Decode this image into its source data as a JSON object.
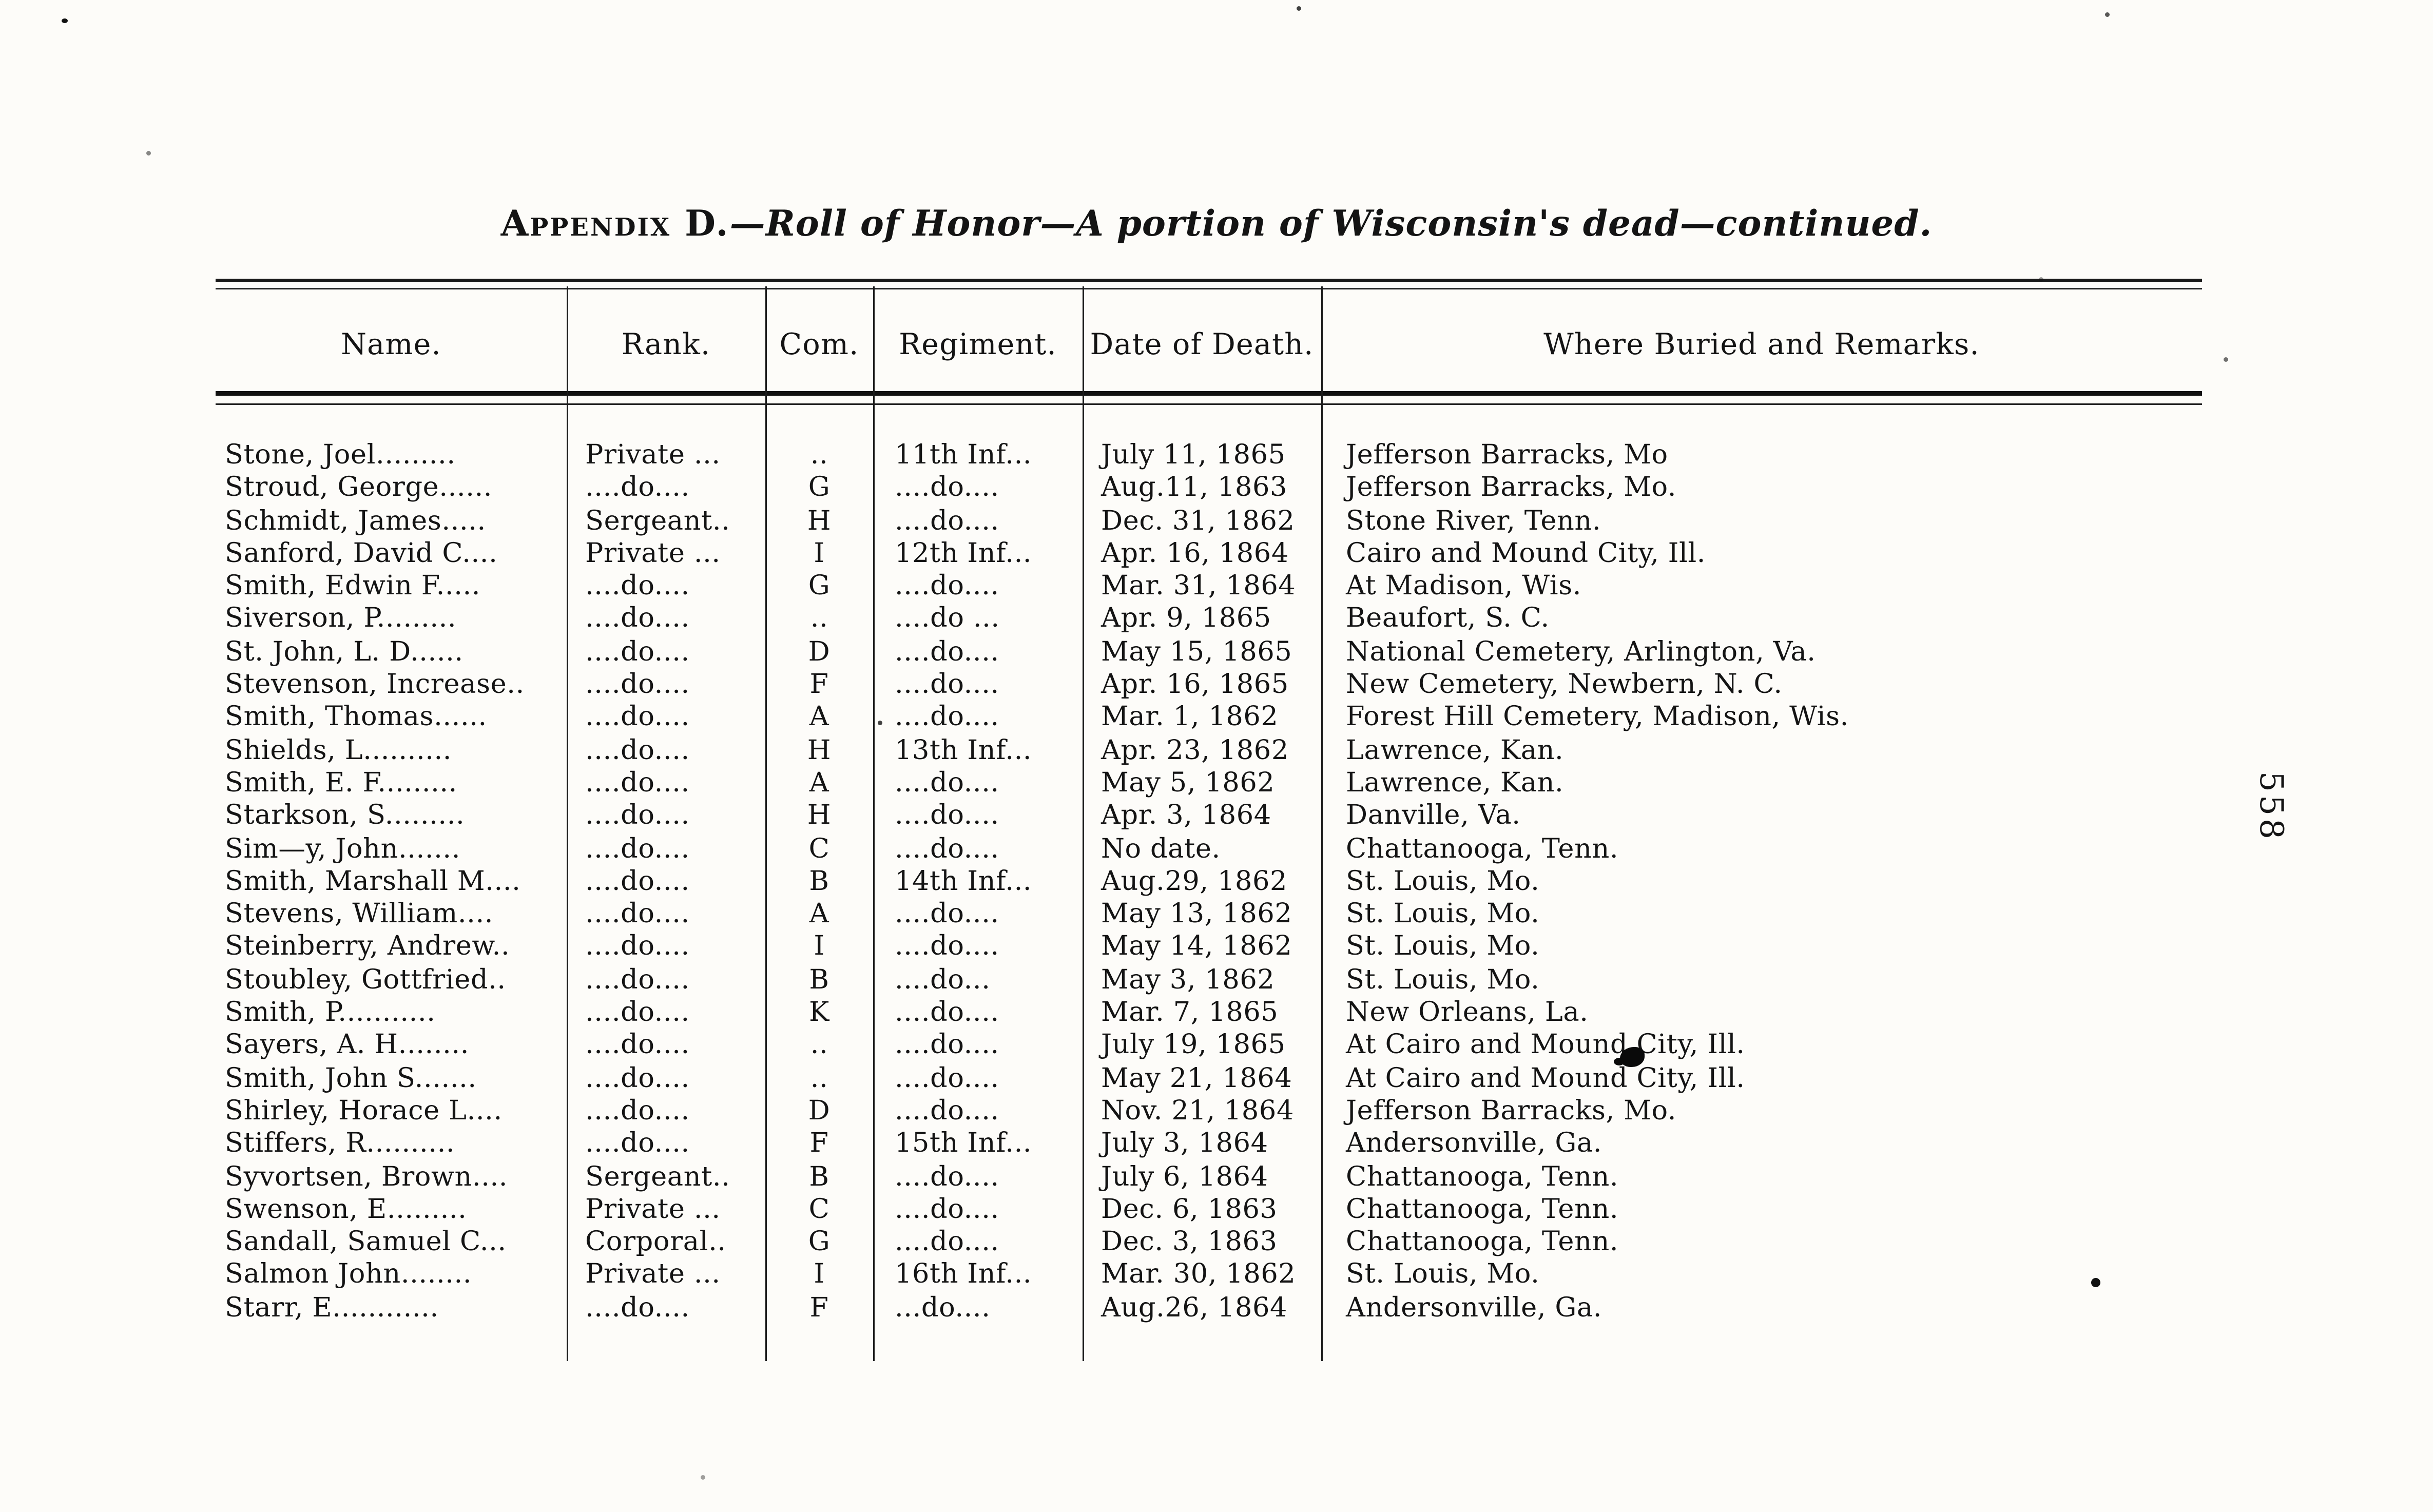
{
  "page": {
    "title_smallcaps": "Appendix D.",
    "title_italic": "—Roll of Honor—A portion of Wisconsin's dead—continued.",
    "page_number": "558"
  },
  "table": {
    "columns": [
      "Name.",
      "Rank.",
      "Com.",
      "Regiment.",
      "Date of Death.",
      "Where Buried and Remarks."
    ],
    "rows": [
      [
        "Stone, Joel.........",
        "Private ...",
        "..",
        "11th Inf...",
        "July 11, 1865",
        "Jefferson Barracks, Mo"
      ],
      [
        "Stroud, George......",
        "....do....",
        "G",
        "....do....",
        "Aug.11, 1863",
        "Jefferson Barracks, Mo."
      ],
      [
        "Schmidt, James.....",
        "Sergeant..",
        "H",
        "....do....",
        "Dec. 31, 1862",
        "Stone River, Tenn."
      ],
      [
        "Sanford, David C....",
        "Private ...",
        "I",
        "12th Inf...",
        "Apr. 16, 1864",
        "Cairo and Mound City, Ill."
      ],
      [
        "Smith, Edwin F.....",
        "....do....",
        "G",
        "....do....",
        "Mar. 31, 1864",
        "At Madison, Wis."
      ],
      [
        "Siverson, P.........",
        "....do....",
        "..",
        "....do ...",
        "Apr.  9, 1865",
        "Beaufort, S. C."
      ],
      [
        "St. John, L. D......",
        "....do....",
        "D",
        "....do....",
        "May 15, 1865",
        "National Cemetery, Arlington, Va."
      ],
      [
        "Stevenson, Increase..",
        "....do....",
        "F",
        "....do....",
        "Apr. 16, 1865",
        "New Cemetery, Newbern, N. C."
      ],
      [
        "Smith, Thomas......",
        "....do....",
        "A",
        "....do....",
        "Mar.  1, 1862",
        "Forest Hill Cemetery, Madison, Wis."
      ],
      [
        "Shields, L..........",
        "....do....",
        "H",
        "13th Inf...",
        "Apr. 23, 1862",
        "Lawrence, Kan."
      ],
      [
        "Smith, E. F.........",
        "....do....",
        "A",
        "....do....",
        "May  5, 1862",
        "Lawrence, Kan."
      ],
      [
        "Starkson, S.........",
        "....do....",
        "H",
        "....do....",
        "Apr.  3, 1864",
        "Danville, Va."
      ],
      [
        "Sim—y, John.......",
        "....do....",
        "C",
        "....do....",
        "No date.",
        "Chattanooga, Tenn."
      ],
      [
        "Smith, Marshall M....",
        "....do....",
        "B",
        "14th Inf...",
        "Aug.29, 1862",
        "St. Louis, Mo."
      ],
      [
        "Stevens, William....",
        "....do....",
        "A",
        "....do....",
        "May 13, 1862",
        "St. Louis, Mo."
      ],
      [
        "Steinberry, Andrew..",
        "....do....",
        "I",
        "....do....",
        "May 14, 1862",
        "St. Louis, Mo."
      ],
      [
        "Stoubley, Gottfried..",
        "....do....",
        "B",
        "....do...",
        "May  3, 1862",
        "St. Louis, Mo."
      ],
      [
        "Smith, P...........",
        "....do....",
        "K",
        "....do....",
        "Mar.  7, 1865",
        "New Orleans, La."
      ],
      [
        "Sayers, A. H........",
        "....do....",
        "..",
        "....do....",
        "July 19, 1865",
        "At Cairo and Mound City, Ill."
      ],
      [
        "Smith, John S.......",
        "....do....",
        "..",
        "....do....",
        "May 21, 1864",
        "At Cairo and Mound City, Ill."
      ],
      [
        "Shirley, Horace L....",
        "....do....",
        "D",
        "....do....",
        "Nov. 21, 1864",
        "Jefferson Barracks, Mo."
      ],
      [
        "Stiffers, R..........",
        "....do....",
        "F",
        "15th Inf...",
        "July  3, 1864",
        "Andersonville, Ga."
      ],
      [
        "Syvortsen, Brown....",
        "Sergeant..",
        "B",
        "....do....",
        "July  6, 1864",
        "Chattanooga, Tenn."
      ],
      [
        "Swenson, E.........",
        "Private ...",
        "C",
        "....do....",
        "Dec.  6, 1863",
        "Chattanooga, Tenn."
      ],
      [
        "Sandall, Samuel C...",
        "Corporal..",
        "G",
        "....do....",
        "Dec.  3, 1863",
        "Chattanooga, Tenn."
      ],
      [
        "Salmon John........",
        "Private ...",
        "I",
        "16th Inf...",
        "Mar. 30, 1862",
        "St. Louis, Mo."
      ],
      [
        "Starr, E............",
        "....do....",
        "F",
        "...do....",
        "Aug.26, 1864",
        "Andersonville, Ga."
      ]
    ]
  }
}
